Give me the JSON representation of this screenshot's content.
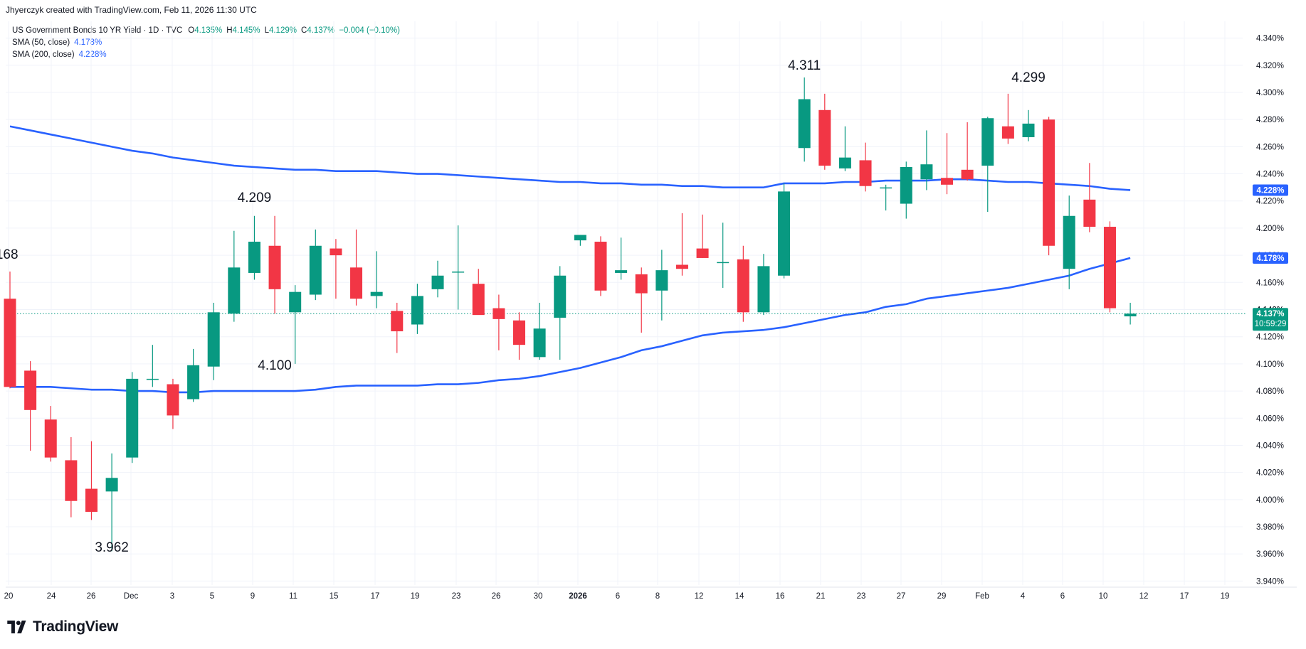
{
  "header": {
    "created_line": "Jhyerczyk created with TradingView.com, Feb 11, 2026 11:30 UTC"
  },
  "legend": {
    "symbol": "US Government Bonds 10 YR Yield · 1D · TVC",
    "open_key": "O",
    "open_val": "4.135%",
    "high_key": "H",
    "high_val": "4.145%",
    "low_key": "L",
    "low_val": "4.129%",
    "close_key": "C",
    "close_val": "4.137%",
    "change_val": "−0.004 (−0.10%)",
    "sma50_label": "SMA (50, close)",
    "sma50_val": "4.178%",
    "sma200_label": "SMA (200, close)",
    "sma200_val": "4.228%"
  },
  "brand": {
    "name": "TradingView"
  },
  "colors": {
    "up": "#089981",
    "down": "#f23645",
    "sma": "#2962ff",
    "last_price": "#089981",
    "grid": "#f0f3fa",
    "text": "#131722"
  },
  "chart_data": {
    "type": "candlestick",
    "ylim": [
      3.93,
      4.35
    ],
    "y_ticks": [
      "4.340%",
      "4.320%",
      "4.300%",
      "4.280%",
      "4.260%",
      "4.240%",
      "4.220%",
      "4.200%",
      "4.180%",
      "4.160%",
      "4.140%",
      "4.120%",
      "4.100%",
      "4.080%",
      "4.060%",
      "4.040%",
      "4.020%",
      "4.000%",
      "3.980%",
      "3.960%",
      "3.940%"
    ],
    "x_ticks": [
      "20",
      "24",
      "26",
      "Dec",
      "3",
      "5",
      "9",
      "11",
      "15",
      "17",
      "19",
      "23",
      "26",
      "30",
      "2026",
      "6",
      "8",
      "12",
      "14",
      "16",
      "21",
      "23",
      "27",
      "29",
      "Feb",
      "4",
      "6",
      "10",
      "12",
      "17",
      "19"
    ],
    "candles": [
      {
        "o": 4.148,
        "h": 4.168,
        "l": 4.082,
        "c": 4.083
      },
      {
        "o": 4.095,
        "h": 4.102,
        "l": 4.036,
        "c": 4.066
      },
      {
        "o": 4.059,
        "h": 4.069,
        "l": 4.028,
        "c": 4.031
      },
      {
        "o": 4.029,
        "h": 4.046,
        "l": 3.987,
        "c": 3.999
      },
      {
        "o": 4.008,
        "h": 4.043,
        "l": 3.985,
        "c": 3.991
      },
      {
        "o": 4.006,
        "h": 4.034,
        "l": 3.962,
        "c": 4.016
      },
      {
        "o": 4.031,
        "h": 4.094,
        "l": 4.027,
        "c": 4.089
      },
      {
        "o": 4.089,
        "h": 4.114,
        "l": 4.083,
        "c": 4.089
      },
      {
        "o": 4.085,
        "h": 4.089,
        "l": 4.052,
        "c": 4.062
      },
      {
        "o": 4.074,
        "h": 4.111,
        "l": 4.072,
        "c": 4.099
      },
      {
        "o": 4.098,
        "h": 4.145,
        "l": 4.088,
        "c": 4.138
      },
      {
        "o": 4.137,
        "h": 4.198,
        "l": 4.131,
        "c": 4.171
      },
      {
        "o": 4.167,
        "h": 4.209,
        "l": 4.162,
        "c": 4.19
      },
      {
        "o": 4.187,
        "h": 4.209,
        "l": 4.137,
        "c": 4.155
      },
      {
        "o": 4.138,
        "h": 4.158,
        "l": 4.1,
        "c": 4.153
      },
      {
        "o": 4.151,
        "h": 4.199,
        "l": 4.147,
        "c": 4.187
      },
      {
        "o": 4.185,
        "h": 4.192,
        "l": 4.148,
        "c": 4.18
      },
      {
        "o": 4.171,
        "h": 4.199,
        "l": 4.143,
        "c": 4.148
      },
      {
        "o": 4.15,
        "h": 4.183,
        "l": 4.141,
        "c": 4.153
      },
      {
        "o": 4.139,
        "h": 4.145,
        "l": 4.108,
        "c": 4.124
      },
      {
        "o": 4.129,
        "h": 4.159,
        "l": 4.122,
        "c": 4.15
      },
      {
        "o": 4.155,
        "h": 4.176,
        "l": 4.149,
        "c": 4.165
      },
      {
        "o": 4.168,
        "h": 4.202,
        "l": 4.14,
        "c": 4.168
      },
      {
        "o": 4.159,
        "h": 4.17,
        "l": 4.137,
        "c": 4.136
      },
      {
        "o": 4.141,
        "h": 4.151,
        "l": 4.11,
        "c": 4.133
      },
      {
        "o": 4.132,
        "h": 4.138,
        "l": 4.103,
        "c": 4.114
      },
      {
        "o": 4.105,
        "h": 4.145,
        "l": 4.103,
        "c": 4.126
      },
      {
        "o": 4.134,
        "h": 4.172,
        "l": 4.103,
        "c": 4.165
      },
      {
        "o": 4.191,
        "h": 4.195,
        "l": 4.187,
        "c": 4.195
      },
      {
        "o": 4.19,
        "h": 4.194,
        "l": 4.15,
        "c": 4.154
      },
      {
        "o": 4.167,
        "h": 4.193,
        "l": 4.162,
        "c": 4.169
      },
      {
        "o": 4.166,
        "h": 4.171,
        "l": 4.123,
        "c": 4.152
      },
      {
        "o": 4.154,
        "h": 4.184,
        "l": 4.132,
        "c": 4.169
      },
      {
        "o": 4.173,
        "h": 4.211,
        "l": 4.165,
        "c": 4.17
      },
      {
        "o": 4.185,
        "h": 4.21,
        "l": 4.178,
        "c": 4.178
      },
      {
        "o": 4.175,
        "h": 4.204,
        "l": 4.156,
        "c": 4.175
      },
      {
        "o": 4.177,
        "h": 4.187,
        "l": 4.131,
        "c": 4.138
      },
      {
        "o": 4.138,
        "h": 4.181,
        "l": 4.136,
        "c": 4.172
      },
      {
        "o": 4.165,
        "h": 4.233,
        "l": 4.163,
        "c": 4.227
      },
      {
        "o": 4.259,
        "h": 4.311,
        "l": 4.249,
        "c": 4.295
      },
      {
        "o": 4.287,
        "h": 4.299,
        "l": 4.243,
        "c": 4.246
      },
      {
        "o": 4.244,
        "h": 4.275,
        "l": 4.242,
        "c": 4.252
      },
      {
        "o": 4.25,
        "h": 4.263,
        "l": 4.227,
        "c": 4.231
      },
      {
        "o": 4.23,
        "h": 4.232,
        "l": 4.213,
        "c": 4.23
      },
      {
        "o": 4.218,
        "h": 4.249,
        "l": 4.207,
        "c": 4.245
      },
      {
        "o": 4.236,
        "h": 4.272,
        "l": 4.228,
        "c": 4.247
      },
      {
        "o": 4.237,
        "h": 4.27,
        "l": 4.225,
        "c": 4.232
      },
      {
        "o": 4.243,
        "h": 4.278,
        "l": 4.235,
        "c": 4.236
      },
      {
        "o": 4.246,
        "h": 4.282,
        "l": 4.212,
        "c": 4.281
      },
      {
        "o": 4.275,
        "h": 4.299,
        "l": 4.262,
        "c": 4.266
      },
      {
        "o": 4.267,
        "h": 4.287,
        "l": 4.264,
        "c": 4.277
      },
      {
        "o": 4.28,
        "h": 4.282,
        "l": 4.18,
        "c": 4.187
      },
      {
        "o": 4.17,
        "h": 4.224,
        "l": 4.155,
        "c": 4.209
      },
      {
        "o": 4.221,
        "h": 4.248,
        "l": 4.197,
        "c": 4.201
      },
      {
        "o": 4.201,
        "h": 4.205,
        "l": 4.138,
        "c": 4.141
      },
      {
        "o": 4.135,
        "h": 4.145,
        "l": 4.129,
        "c": 4.137
      }
    ],
    "series": [
      {
        "name": "SMA (50, close)",
        "values": [
          4.083,
          4.083,
          4.083,
          4.082,
          4.081,
          4.081,
          4.08,
          4.08,
          4.079,
          4.079,
          4.08,
          4.08,
          4.08,
          4.08,
          4.08,
          4.081,
          4.083,
          4.084,
          4.084,
          4.084,
          4.084,
          4.085,
          4.085,
          4.086,
          4.088,
          4.089,
          4.091,
          4.094,
          4.097,
          4.101,
          4.105,
          4.11,
          4.113,
          4.117,
          4.121,
          4.123,
          4.124,
          4.125,
          4.127,
          4.13,
          4.133,
          4.136,
          4.138,
          4.142,
          4.144,
          4.148,
          4.15,
          4.152,
          4.154,
          4.156,
          4.159,
          4.162,
          4.165,
          4.17,
          4.174,
          4.178
        ]
      },
      {
        "name": "SMA (200, close)",
        "values": [
          4.275,
          4.272,
          4.269,
          4.266,
          4.263,
          4.26,
          4.257,
          4.255,
          4.252,
          4.25,
          4.248,
          4.246,
          4.245,
          4.244,
          4.243,
          4.243,
          4.242,
          4.242,
          4.242,
          4.241,
          4.24,
          4.24,
          4.239,
          4.238,
          4.237,
          4.236,
          4.235,
          4.234,
          4.234,
          4.233,
          4.233,
          4.232,
          4.232,
          4.231,
          4.231,
          4.23,
          4.23,
          4.23,
          4.233,
          4.233,
          4.233,
          4.234,
          4.234,
          4.235,
          4.235,
          4.235,
          4.236,
          4.236,
          4.235,
          4.234,
          4.234,
          4.233,
          4.232,
          4.231,
          4.229,
          4.228
        ]
      }
    ],
    "annotations": [
      "4.311",
      "4.299",
      "4.209",
      "4.100",
      "3.962",
      "168"
    ],
    "price_labels": {
      "sma200": "4.228%",
      "sma50": "4.178%",
      "last": "4.137%",
      "countdown": "10:59:29"
    },
    "hidden_tick": "4.140%",
    "grid": true
  }
}
